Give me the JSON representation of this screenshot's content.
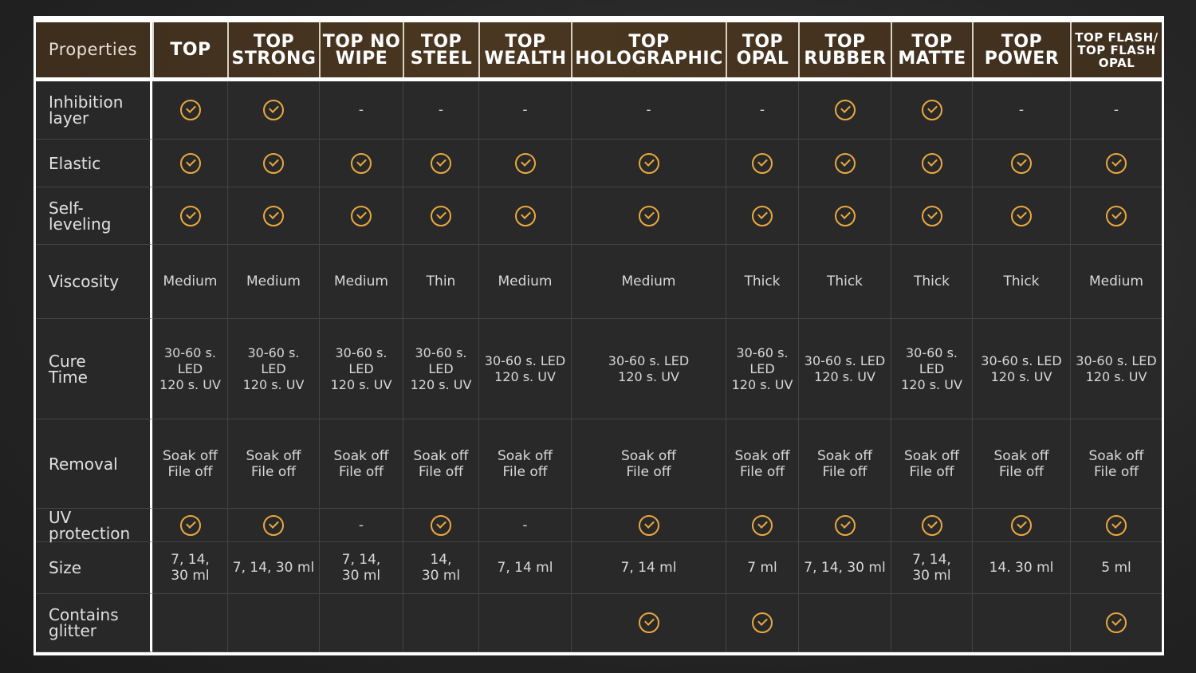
{
  "header": {
    "properties_label": "Properties",
    "products": [
      "TOP",
      "TOP\nSTRONG",
      "TOP NO\nWIPE",
      "TOP\nSTEEL",
      "TOP\nWEALTH",
      "TOP\nHOLOGRAPHIC",
      "TOP\nOPAL",
      "TOP\nRUBBER",
      "TOP\nMATTE",
      "TOP\nPOWER",
      "TOP FLASH/\nTOP FLASH\nOPAL"
    ]
  },
  "accent_color": "#e8a940",
  "header_color": "#4a3721",
  "rows": [
    {
      "label": "Inhibition\nlayer",
      "values": [
        "check",
        "check",
        "-",
        "-",
        "-",
        "-",
        "-",
        "check",
        "check",
        "-",
        "-"
      ]
    },
    {
      "label": "Elastic",
      "values": [
        "check",
        "check",
        "check",
        "check",
        "check",
        "check",
        "check",
        "check",
        "check",
        "check",
        "check"
      ]
    },
    {
      "label": "Self-\nleveling",
      "values": [
        "check",
        "check",
        "check",
        "check",
        "check",
        "check",
        "check",
        "check",
        "check",
        "check",
        "check"
      ]
    },
    {
      "label": "Viscosity",
      "values": [
        "Medium",
        "Medium",
        "Medium",
        "Thin",
        "Medium",
        "Medium",
        "Thick",
        "Thick",
        "Thick",
        "Thick",
        "Medium"
      ]
    },
    {
      "label": "Cure\nTime",
      "values": [
        "30-60 s.\nLED\n120 s. UV",
        "30-60 s.\nLED\n120 s. UV",
        "30-60 s.\nLED\n120 s. UV",
        "30-60 s.\nLED\n120 s. UV",
        "30-60 s. LED\n120 s. UV",
        "30-60 s. LED\n120 s. UV",
        "30-60 s.\nLED\n120 s. UV",
        "30-60 s. LED\n120 s. UV",
        "30-60 s.\nLED\n120 s. UV",
        "30-60 s. LED\n120 s. UV",
        "30-60 s. LED\n120 s. UV"
      ]
    },
    {
      "label": "Removal",
      "values": [
        "Soak off\nFile off",
        "Soak off\nFile off",
        "Soak off\nFile off",
        "Soak off\nFile off",
        "Soak off\nFile off",
        "Soak off\nFile off",
        "Soak off\nFile off",
        "Soak off\nFile off",
        "Soak off\nFile off",
        "Soak off\nFile off",
        "Soak off\nFile off"
      ]
    },
    {
      "label": "UV protection",
      "values": [
        "check",
        "check",
        "-",
        "check",
        "-",
        "check",
        "check",
        "check",
        "check",
        "check",
        "check"
      ]
    },
    {
      "label": "Size",
      "values": [
        "7, 14,\n30 ml",
        "7, 14, 30 ml",
        "7, 14,\n30 ml",
        "14,\n30 ml",
        "7, 14 ml",
        "7, 14 ml",
        "7 ml",
        "7, 14, 30 ml",
        "7, 14,\n30 ml",
        "14. 30 ml",
        "5 ml"
      ]
    },
    {
      "label": "Contains\nglitter",
      "values": [
        "",
        "",
        "",
        "",
        "",
        "check",
        "check",
        "",
        "",
        "",
        "check"
      ]
    }
  ]
}
